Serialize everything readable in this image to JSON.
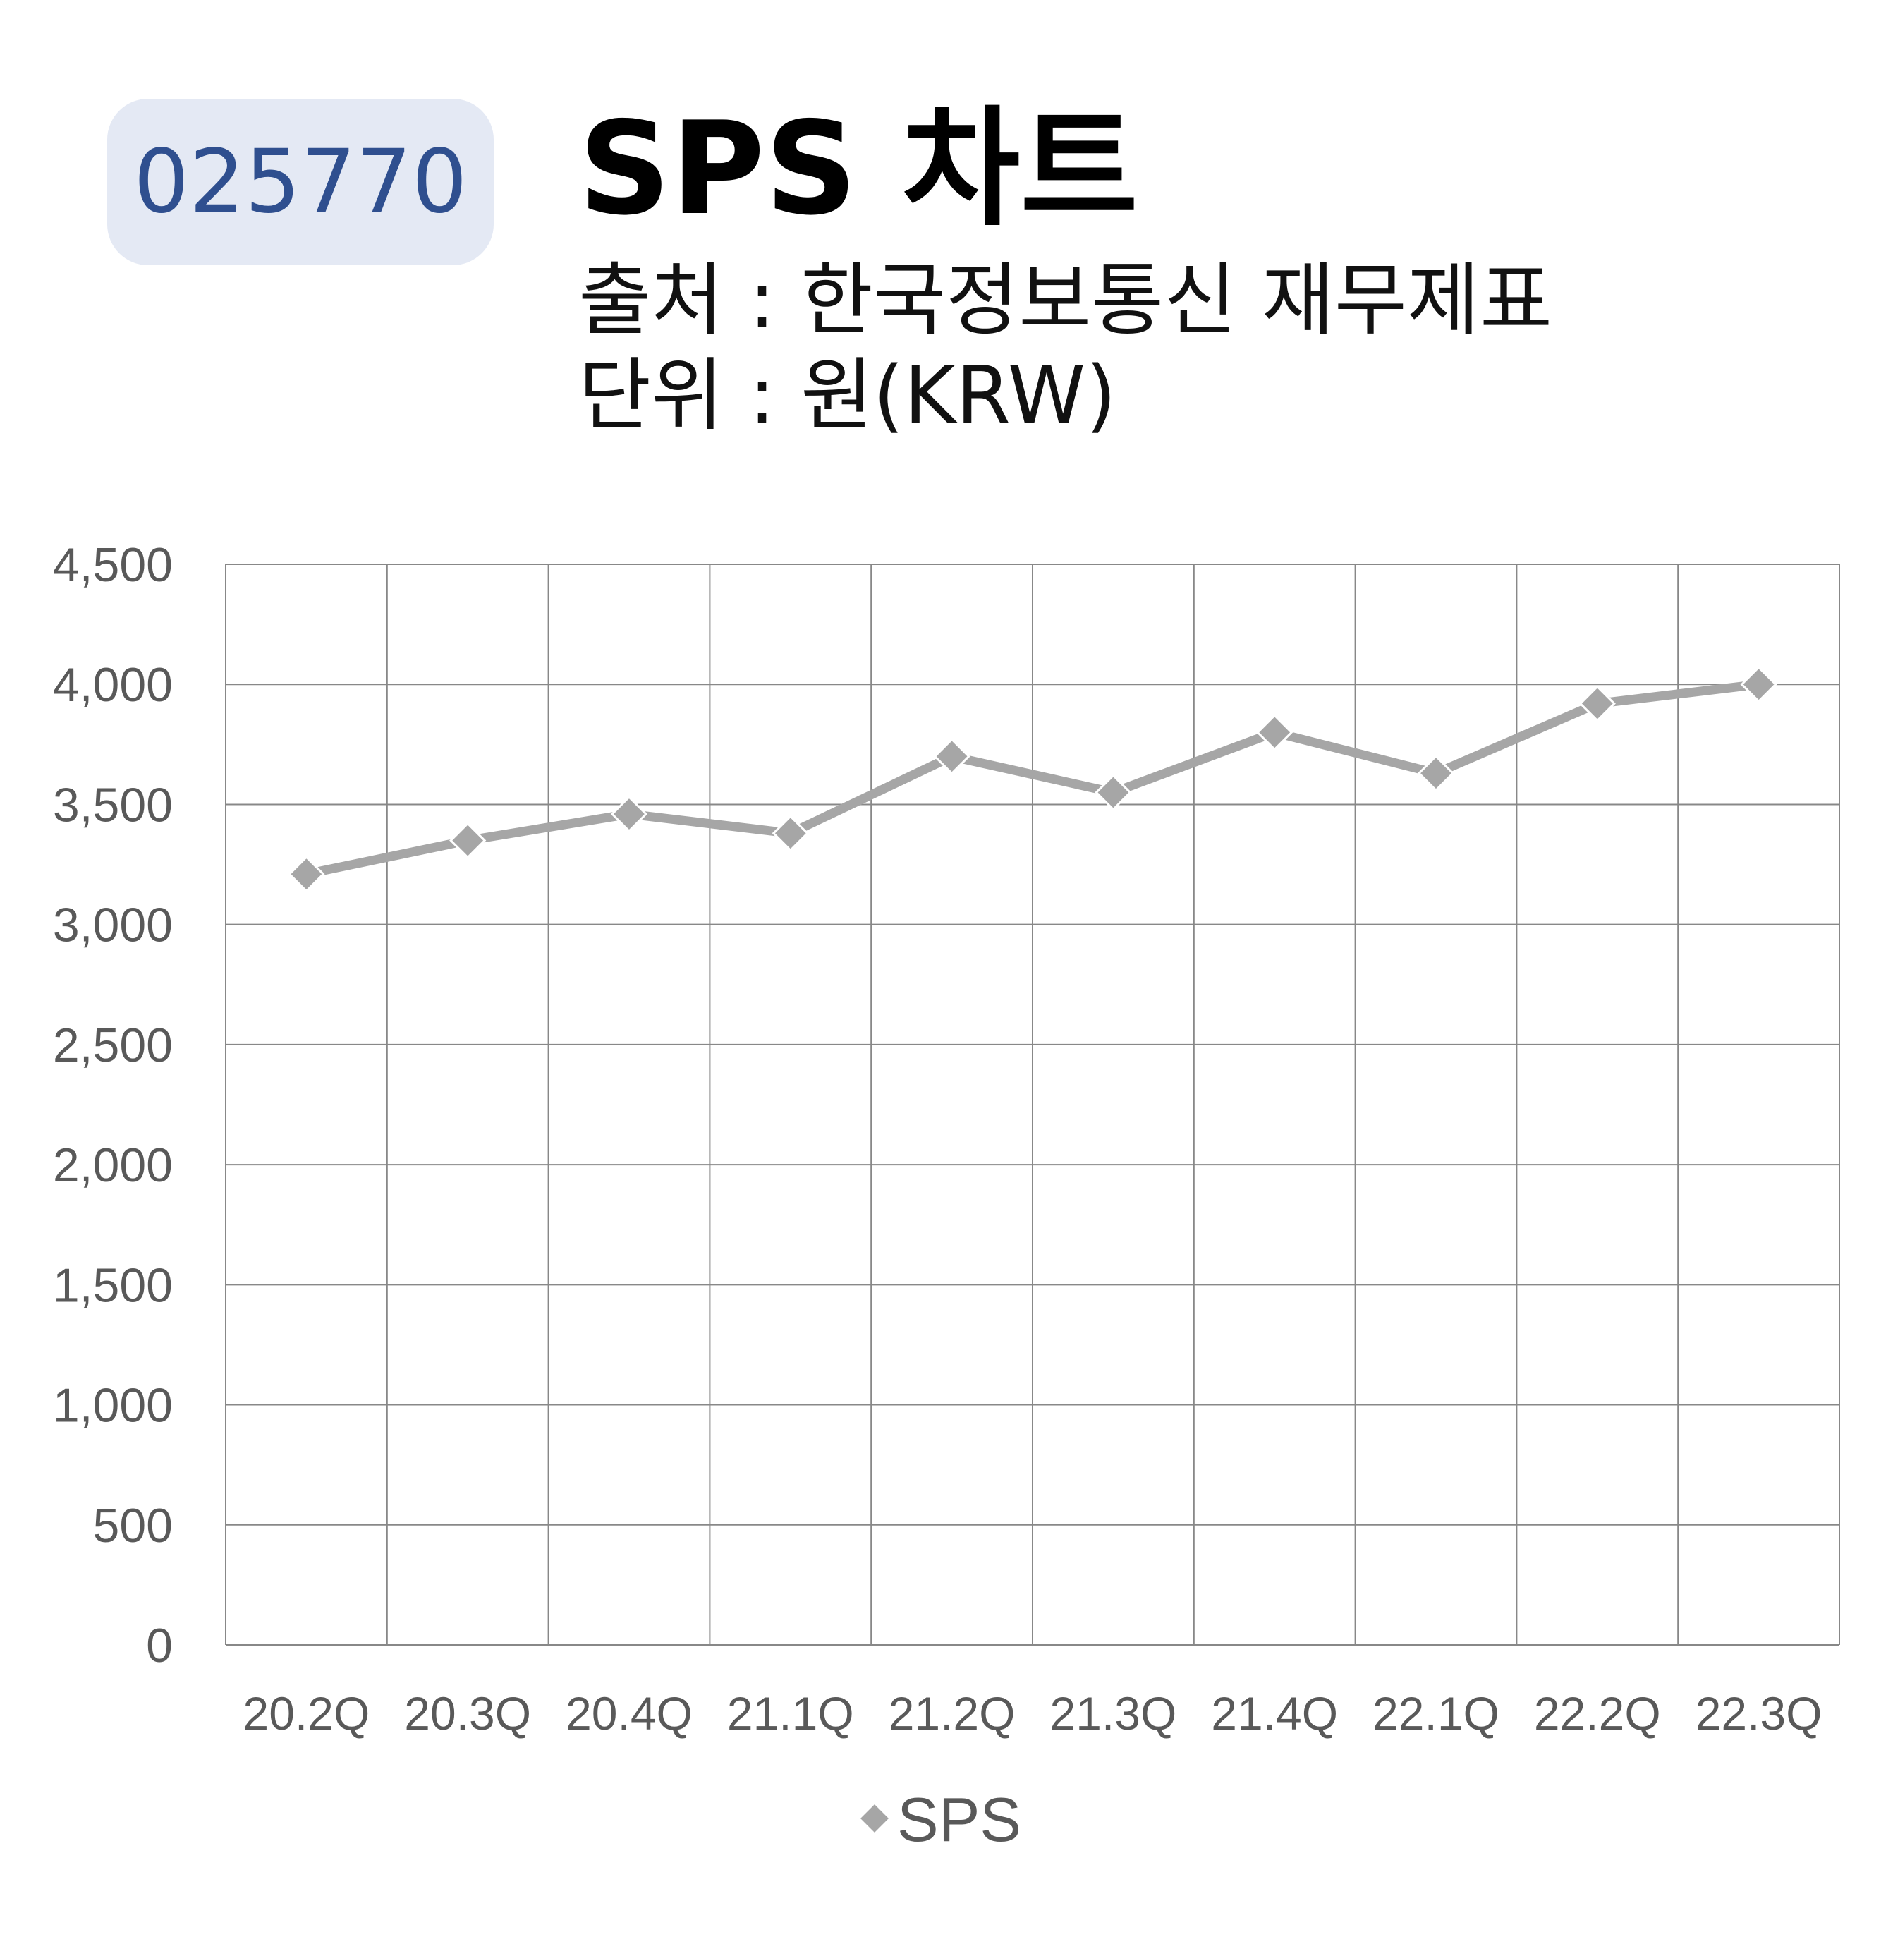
{
  "ticker": "025770",
  "title": "SPS 차트",
  "source_line": "출처 : 한국정보통신 재무제표",
  "unit_line": "단위 : 원(KRW)",
  "colors": {
    "badge_bg": "#e4e9f4",
    "ticker_text": "#2f4f8f",
    "series": "#a6a6a6",
    "grid": "#888888"
  },
  "chart_data": {
    "type": "line",
    "categories": [
      "20.2Q",
      "20.3Q",
      "20.4Q",
      "21.1Q",
      "21.2Q",
      "21.3Q",
      "21.4Q",
      "22.1Q",
      "22.2Q",
      "22.3Q"
    ],
    "series": [
      {
        "name": "SPS",
        "values": [
          3210,
          3350,
          3460,
          3380,
          3700,
          3550,
          3800,
          3630,
          3920,
          4000
        ]
      }
    ],
    "yticks": [
      "0",
      "500",
      "1,000",
      "1,500",
      "2,000",
      "2,500",
      "3,000",
      "3,500",
      "4,000",
      "4,500"
    ],
    "ylim": [
      0,
      4500
    ],
    "grid": true,
    "marker": "diamond",
    "legend_position": "bottom"
  }
}
